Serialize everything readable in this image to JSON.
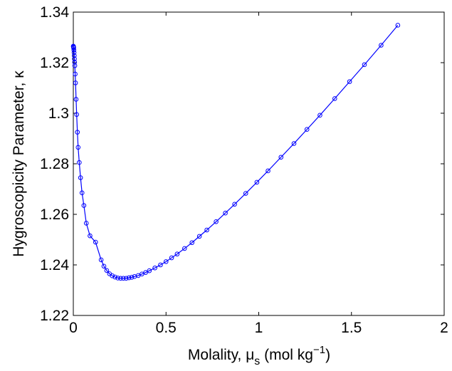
{
  "chart_data": {
    "type": "line",
    "title": "",
    "xlabel": {
      "text": "Molality, ",
      "symbol": "μ",
      "sub": "s",
      "unit_pre": " (mol kg",
      "unit_sup": "−1",
      "unit_post": ")"
    },
    "ylabel": {
      "text": "Hygroscopicity Parameter, ",
      "symbol": "κ"
    },
    "xlim": [
      0,
      2
    ],
    "ylim": [
      1.22,
      1.34
    ],
    "xticks": [
      0,
      0.5,
      1,
      1.5,
      2
    ],
    "xtick_labels": [
      "0",
      "0.5",
      "1",
      "1.5",
      "2"
    ],
    "yticks": [
      1.22,
      1.24,
      1.26,
      1.28,
      1.3,
      1.32,
      1.34
    ],
    "ytick_labels": [
      "1.22",
      "1.24",
      "1.26",
      "1.28",
      "1.3",
      "1.32",
      "1.34"
    ],
    "grid": false,
    "legend": "none",
    "color": "#0000ff",
    "marker": "circle",
    "series": [
      {
        "x": [
          0.0,
          0.0005,
          0.001,
          0.0015,
          0.002,
          0.003,
          0.004,
          0.005,
          0.006,
          0.007,
          0.008,
          0.01,
          0.012,
          0.015,
          0.018,
          0.022,
          0.026,
          0.032,
          0.039,
          0.047,
          0.057,
          0.07,
          0.09,
          0.12,
          0.15,
          0.165,
          0.18,
          0.195,
          0.21,
          0.225,
          0.24,
          0.255,
          0.27,
          0.285,
          0.3,
          0.315,
          0.33,
          0.35,
          0.37,
          0.39,
          0.41,
          0.44,
          0.47,
          0.5,
          0.53,
          0.56,
          0.6,
          0.64,
          0.68,
          0.72,
          0.77,
          0.82,
          0.87,
          0.93,
          0.99,
          1.05,
          1.12,
          1.19,
          1.26,
          1.33,
          1.41,
          1.49,
          1.57,
          1.66,
          1.75
        ],
        "y": [
          1.3265,
          1.3265,
          1.3263,
          1.3261,
          1.3258,
          1.325,
          1.324,
          1.3228,
          1.3215,
          1.3202,
          1.3188,
          1.3155,
          1.312,
          1.3055,
          1.2995,
          1.2925,
          1.2865,
          1.2805,
          1.2745,
          1.2685,
          1.2635,
          1.2565,
          1.2515,
          1.249,
          1.242,
          1.2395,
          1.2378,
          1.2365,
          1.2357,
          1.2352,
          1.2348,
          1.2347,
          1.2347,
          1.2347,
          1.2349,
          1.2351,
          1.2354,
          1.2358,
          1.2364,
          1.237,
          1.2377,
          1.2388,
          1.24,
          1.2413,
          1.2428,
          1.2443,
          1.2465,
          1.2488,
          1.2513,
          1.2538,
          1.2571,
          1.2605,
          1.264,
          1.2683,
          1.2727,
          1.2772,
          1.2826,
          1.288,
          1.2936,
          1.2992,
          1.3058,
          1.3125,
          1.3192,
          1.3269,
          1.3348
        ]
      }
    ]
  }
}
